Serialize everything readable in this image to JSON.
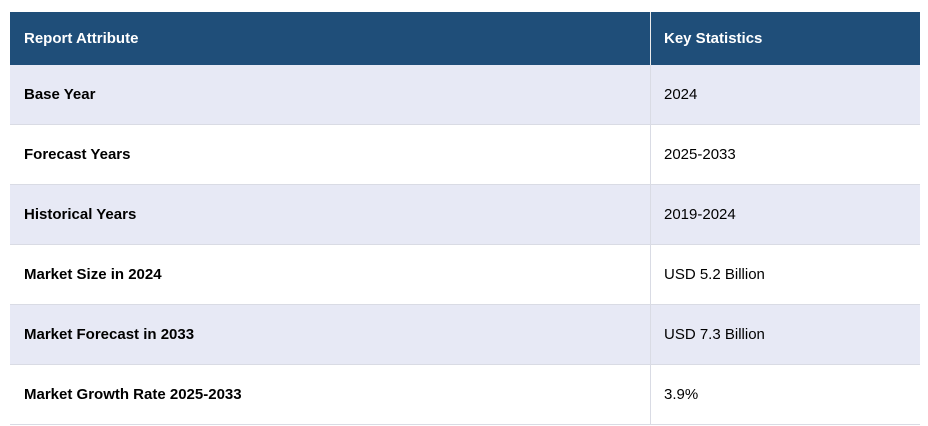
{
  "table": {
    "headers": {
      "attribute": "Report Attribute",
      "statistics": "Key Statistics"
    },
    "rows": [
      {
        "attribute": "Base Year",
        "value": "2024"
      },
      {
        "attribute": "Forecast Years",
        "value": "2025-2033"
      },
      {
        "attribute": "Historical Years",
        "value": "2019-2024"
      },
      {
        "attribute": "Market Size in 2024",
        "value": "USD 5.2 Billion"
      },
      {
        "attribute": "Market Forecast in 2033",
        "value": "USD 7.3 Billion"
      },
      {
        "attribute": "Market Growth Rate 2025-2033",
        "value": "3.9%"
      }
    ]
  },
  "colors": {
    "header_bg": "#1F4E79",
    "header_text": "#FFFFFF",
    "row_bg": "#FFFFFF",
    "row_alt_bg": "#E7E9F5",
    "border": "#D9DBE4",
    "text": "#000000"
  },
  "chart_data": {
    "type": "table",
    "title": "",
    "columns": [
      "Report Attribute",
      "Key Statistics"
    ],
    "rows": [
      [
        "Base Year",
        "2024"
      ],
      [
        "Forecast Years",
        "2025-2033"
      ],
      [
        "Historical Years",
        "2019-2024"
      ],
      [
        "Market Size in 2024",
        "USD 5.2 Billion"
      ],
      [
        "Market Forecast in 2033",
        "USD 7.3 Billion"
      ],
      [
        "Market Growth Rate 2025-2033",
        "3.9%"
      ]
    ]
  }
}
